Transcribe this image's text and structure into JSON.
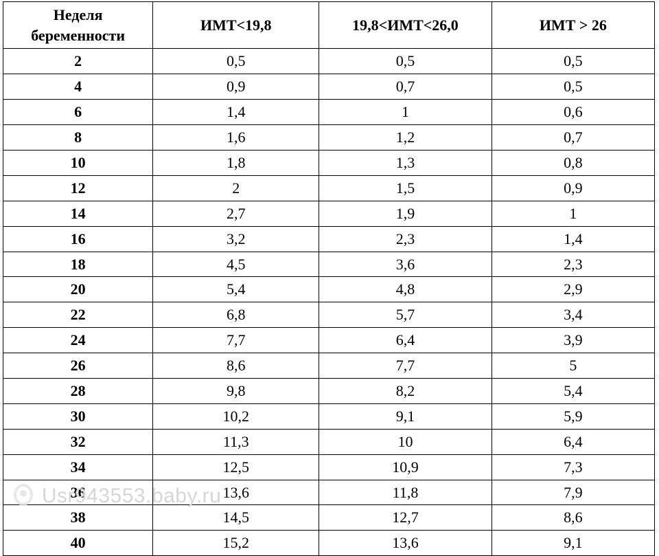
{
  "table": {
    "columns": [
      "Неделя беременности",
      "ИМТ<19,8",
      "19,8<ИМТ<26,0",
      "ИМТ > 26"
    ],
    "rows": [
      [
        "2",
        "0,5",
        "0,5",
        "0,5"
      ],
      [
        "4",
        "0,9",
        "0,7",
        "0,5"
      ],
      [
        "6",
        "1,4",
        "1",
        "0,6"
      ],
      [
        "8",
        "1,6",
        "1,2",
        "0,7"
      ],
      [
        "10",
        "1,8",
        "1,3",
        "0,8"
      ],
      [
        "12",
        "2",
        "1,5",
        "0,9"
      ],
      [
        "14",
        "2,7",
        "1,9",
        "1"
      ],
      [
        "16",
        "3,2",
        "2,3",
        "1,4"
      ],
      [
        "18",
        "4,5",
        "3,6",
        "2,3"
      ],
      [
        "20",
        "5,4",
        "4,8",
        "2,9"
      ],
      [
        "22",
        "6,8",
        "5,7",
        "3,4"
      ],
      [
        "24",
        "7,7",
        "6,4",
        "3,9"
      ],
      [
        "26",
        "8,6",
        "7,7",
        "5"
      ],
      [
        "28",
        "9,8",
        "8,2",
        "5,4"
      ],
      [
        "30",
        "10,2",
        "9,1",
        "5,9"
      ],
      [
        "32",
        "11,3",
        "10",
        "6,4"
      ],
      [
        "34",
        "12,5",
        "10,9",
        "7,3"
      ],
      [
        "36",
        "13,6",
        "11,8",
        "7,9"
      ],
      [
        "38",
        "14,5",
        "12,7",
        "8,6"
      ],
      [
        "40",
        "15,2",
        "13,6",
        "9,1"
      ]
    ],
    "col_classes": [
      "col-week",
      "col-a",
      "col-b",
      "col-c"
    ],
    "border_color": "#000000",
    "background_color": "#ffffff",
    "header_fontsize": 22,
    "cell_fontsize": 22,
    "font_family": "Times New Roman"
  },
  "watermark": {
    "text": "Usr943553.baby.ru",
    "color": "#d6d6d6",
    "fontsize": 30
  }
}
